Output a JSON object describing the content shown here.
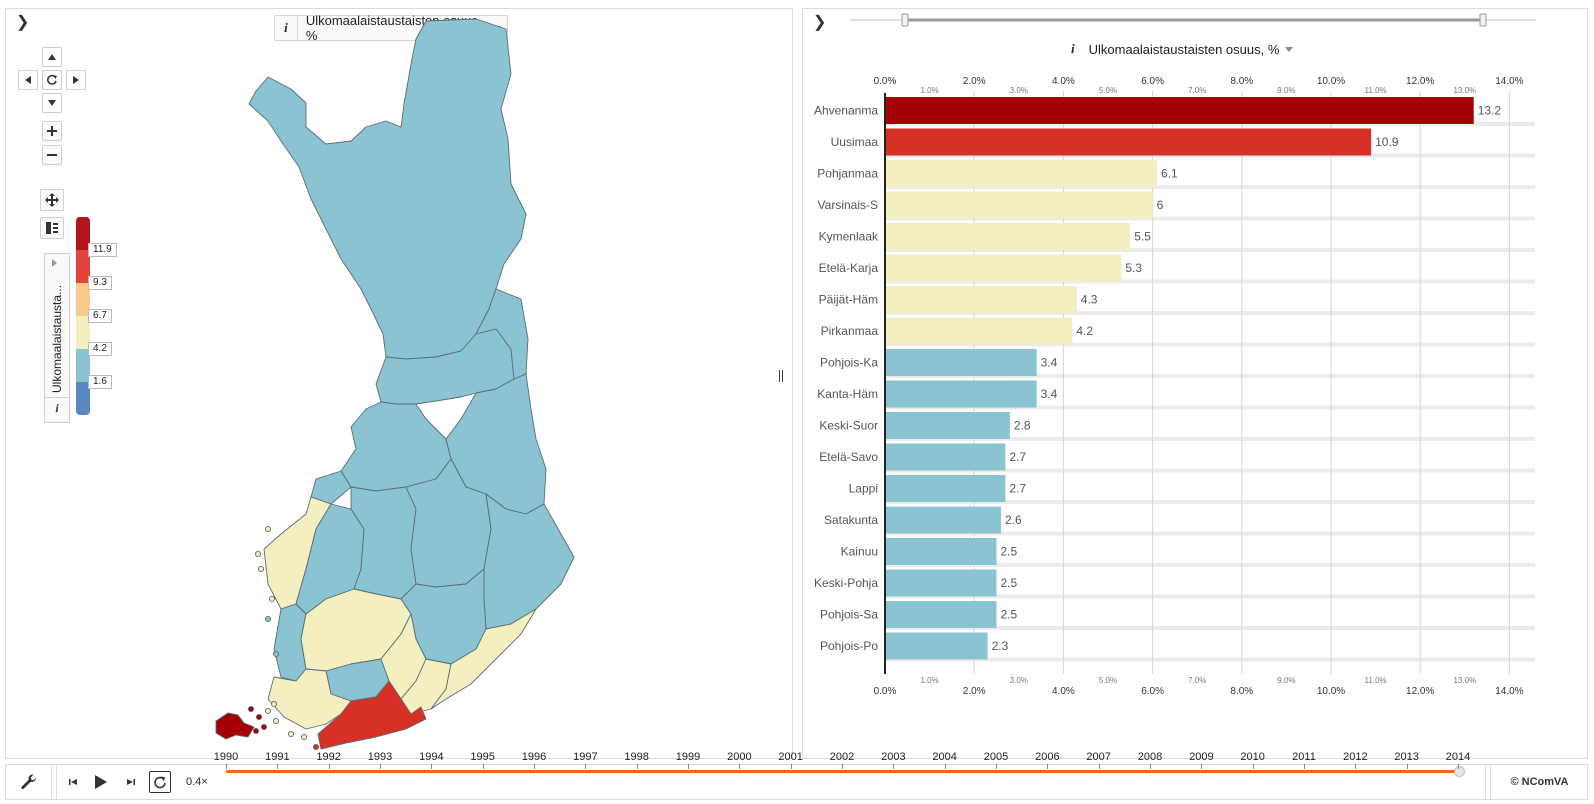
{
  "map_panel": {
    "metric_label": "Ulkomaalaistaustaisten osuus, %",
    "info_icon": "i",
    "collapse_icon": "chevron-right-icon",
    "legend": {
      "title": "Ulkomaalaistausta...",
      "info": "i",
      "ticks": [
        "11.9",
        "9.3",
        "6.7",
        "4.2",
        "1.6"
      ],
      "colors": [
        "#b2141b",
        "#e0443c",
        "#f9c98a",
        "#f3efc1",
        "#8ac4d2",
        "#5b87c0"
      ]
    },
    "region_colors": {
      "cold": "#8ac4d2",
      "pale": "#f3efc1",
      "red": "#d73027",
      "dark_red": "#a50006",
      "border": "#5c6c74"
    }
  },
  "bar_panel": {
    "metric_label": "Ulkomaalaistaustaisten osuus, %",
    "info_icon": "i",
    "collapse_icon": "chevron-right-icon"
  },
  "chart_data": {
    "type": "bar",
    "orientation": "horizontal",
    "title": "Ulkomaalaistaustaisten osuus, %",
    "categories": [
      "Ahvenanmaa",
      "Uusimaa",
      "Pohjanmaa",
      "Varsinais-Suomi",
      "Kymenlaakso",
      "Etelä-Karjala",
      "Päijät-Häme",
      "Pirkanmaa",
      "Pohjois-Karjala",
      "Kanta-Häme",
      "Keski-Suomi",
      "Etelä-Savo",
      "Lappi",
      "Satakunta",
      "Kainuu",
      "Keski-Pohjanmaa",
      "Pohjois-Savo",
      "Pohjois-Pohjanmaa"
    ],
    "category_labels": [
      "Ahvenanma",
      "Uusimaa",
      "Pohjanmaa",
      "Varsinais-S",
      "Kymenlaak",
      "Etelä-Karja",
      "Päijät-Häm",
      "Pirkanmaa",
      "Pohjois-Ka",
      "Kanta-Häm",
      "Keski-Suor",
      "Etelä-Savo",
      "Lappi",
      "Satakunta",
      "Kainuu",
      "Keski-Pohja",
      "Pohjois-Sa",
      "Pohjois-Po"
    ],
    "values": [
      13.2,
      10.9,
      6.1,
      6,
      5.5,
      5.3,
      4.3,
      4.2,
      3.4,
      3.4,
      2.8,
      2.7,
      2.7,
      2.6,
      2.5,
      2.5,
      2.5,
      2.3
    ],
    "value_labels": [
      "13.2",
      "10.9",
      "6.1",
      "6",
      "5.5",
      "5.3",
      "4.3",
      "4.2",
      "3.4",
      "3.4",
      "2.8",
      "2.7",
      "2.7",
      "2.6",
      "2.5",
      "2.5",
      "2.5",
      "2.3"
    ],
    "colors": [
      "#a50006",
      "#d73027",
      "#f3efc1",
      "#f3efc1",
      "#f3efc1",
      "#f3efc1",
      "#f3efc1",
      "#f3efc1",
      "#8ac4d2",
      "#8ac4d2",
      "#8ac4d2",
      "#8ac4d2",
      "#8ac4d2",
      "#8ac4d2",
      "#8ac4d2",
      "#8ac4d2",
      "#8ac4d2",
      "#8ac4d2"
    ],
    "xlim": [
      0,
      14.5
    ],
    "major_ticks": [
      "0.0%",
      "2.0%",
      "4.0%",
      "6.0%",
      "8.0%",
      "10.0%",
      "12.0%",
      "14.0%"
    ],
    "minor_ticks": [
      "1.0%",
      "3.0%",
      "5.0%",
      "7.0%",
      "9.0%",
      "11.0%",
      "13.0%"
    ],
    "grid": true
  },
  "timeline": {
    "years": [
      "1990",
      "1991",
      "1992",
      "1993",
      "1994",
      "1995",
      "1996",
      "1997",
      "1998",
      "1999",
      "2000",
      "2001",
      "2002",
      "2003",
      "2004",
      "2005",
      "2006",
      "2007",
      "2008",
      "2009",
      "2010",
      "2011",
      "2012",
      "2013",
      "2014"
    ],
    "speed": "0.4×",
    "selected_year": "2014",
    "accent_color": "#f26522"
  },
  "footer": {
    "copyright": "© NComVA"
  }
}
